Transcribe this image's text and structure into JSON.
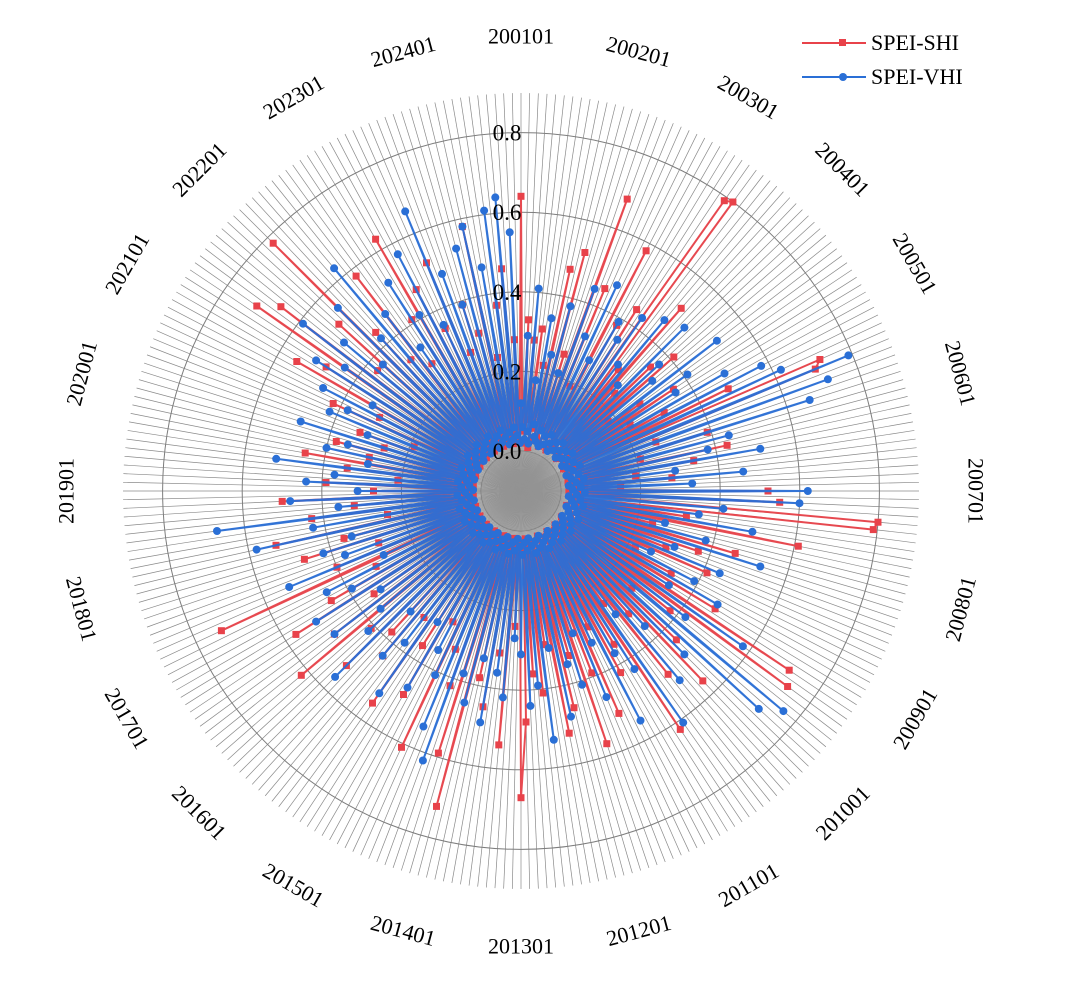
{
  "chart_data": {
    "type": "radar",
    "title": "",
    "legend_position": "top-right",
    "grid": true,
    "rlim": [
      0.0,
      0.8
    ],
    "r_ticks": [
      "0.0",
      "0.2",
      "0.4",
      "0.6",
      "0.8"
    ],
    "r_tick_values": [
      0.0,
      0.2,
      0.4,
      0.6,
      0.8
    ],
    "num_points": 288,
    "category_labels": [
      "200101",
      "200201",
      "200301",
      "200401",
      "200501",
      "200601",
      "200701",
      "200801",
      "200901",
      "201001",
      "201101",
      "201201",
      "201301",
      "201401",
      "201501",
      "201601",
      "201701",
      "201801",
      "201901",
      "202001",
      "202101",
      "202201",
      "202301",
      "202401"
    ],
    "label_every": 12,
    "series": [
      {
        "name": "SPEI-SHI",
        "color": "#E8424A",
        "marker": "square",
        "values": [
          0.64,
          0.05,
          0.33,
          0.02,
          0.28,
          0.08,
          0.31,
          0.01,
          0.22,
          0.06,
          0.47,
          0.03,
          0.52,
          0.04,
          0.26,
          0.07,
          0.68,
          0.02,
          0.45,
          0.05,
          0.19,
          0.03,
          0.58,
          0.06,
          0.38,
          0.02,
          0.44,
          0.05,
          0.79,
          0.8,
          0.04,
          0.29,
          0.07,
          0.51,
          0.03,
          0.24,
          0.06,
          0.35,
          0.02,
          0.41,
          0.05,
          0.18,
          0.08,
          0.27,
          0.03,
          0.36,
          0.06,
          0.22,
          0.04,
          0.31,
          0.02,
          0.48,
          0.05,
          0.72,
          0.7,
          0.06,
          0.26,
          0.03,
          0.39,
          0.05,
          0.21,
          0.07,
          0.43,
          0.02,
          0.34,
          0.05,
          0.19,
          0.03,
          0.28,
          0.06,
          0.15,
          0.04,
          0.52,
          0.02,
          0.55,
          0.05,
          0.8,
          0.79,
          0.03,
          0.32,
          0.06,
          0.61,
          0.04,
          0.24,
          0.07,
          0.46,
          0.02,
          0.37,
          0.05,
          0.29,
          0.03,
          0.41,
          0.06,
          0.22,
          0.04,
          0.33,
          0.05,
          0.47,
          0.02,
          0.71,
          0.05,
          0.73,
          0.03,
          0.38,
          0.06,
          0.27,
          0.04,
          0.44,
          0.02,
          0.56,
          0.05,
          0.31,
          0.03,
          0.49,
          0.06,
          0.25,
          0.04,
          0.62,
          0.02,
          0.35,
          0.05,
          0.42,
          0.03,
          0.28,
          0.06,
          0.51,
          0.04,
          0.39,
          0.02,
          0.57,
          0.05,
          0.33,
          0.07,
          0.46,
          0.03,
          0.52,
          0.06,
          0.29,
          0.04,
          0.41,
          0.02,
          0.36,
          0.05,
          0.48,
          0.67,
          0.03,
          0.24,
          0.06,
          0.54,
          0.04,
          0.31,
          0.02,
          0.45,
          0.05,
          0.38,
          0.03,
          0.72,
          0.06,
          0.59,
          0.04,
          0.42,
          0.02,
          0.33,
          0.05,
          0.61,
          0.03,
          0.27,
          0.06,
          0.49,
          0.04,
          0.36,
          0.02,
          0.55,
          0.05,
          0.3,
          0.03,
          0.44,
          0.06,
          0.38,
          0.04,
          0.52,
          0.02,
          0.41,
          0.05,
          0.62,
          0.03,
          0.49,
          0.06,
          0.35,
          0.04,
          0.57,
          0.02,
          0.45,
          0.05,
          0.31,
          0.03,
          0.73,
          0.06,
          0.4,
          0.04,
          0.28,
          0.02,
          0.47,
          0.05,
          0.36,
          0.03,
          0.53,
          0.06,
          0.24,
          0.04,
          0.43,
          0.02,
          0.32,
          0.05,
          0.5,
          0.03,
          0.27,
          0.06,
          0.39,
          0.04,
          0.21,
          0.02,
          0.34,
          0.05,
          0.45,
          0.03,
          0.29,
          0.06,
          0.38,
          0.04,
          0.26,
          0.02,
          0.33,
          0.05,
          0.19,
          0.03,
          0.42,
          0.06,
          0.3,
          0.04,
          0.55,
          0.02,
          0.48,
          0.05,
          0.71,
          0.03,
          0.66,
          0.06,
          0.37,
          0.04,
          0.52,
          0.02,
          0.78,
          0.05,
          0.44,
          0.03,
          0.33,
          0.06,
          0.58,
          0.04,
          0.29,
          0.02,
          0.41,
          0.05,
          0.63,
          0.03,
          0.47,
          0.06,
          0.35,
          0.04,
          0.52,
          0.02,
          0.27,
          0.05,
          0.39,
          0.03,
          0.31,
          0.06,
          0.58,
          0.04,
          0.24,
          0.02,
          0.37,
          0.05,
          0.46,
          0.03,
          0.28,
          0.06
        ]
      },
      {
        "name": "SPEI-VHI",
        "color": "#2A6FD6",
        "marker": "circle",
        "values": [
          0.12,
          0.06,
          0.29,
          0.03,
          0.41,
          0.05,
          0.18,
          0.02,
          0.34,
          0.07,
          0.25,
          0.04,
          0.38,
          0.03,
          0.21,
          0.06,
          0.44,
          0.02,
          0.32,
          0.05,
          0.47,
          0.03,
          0.27,
          0.06,
          0.39,
          0.04,
          0.35,
          0.02,
          0.43,
          0.05,
          0.3,
          0.03,
          0.46,
          0.06,
          0.26,
          0.04,
          0.48,
          0.02,
          0.37,
          0.05,
          0.33,
          0.03,
          0.52,
          0.06,
          0.41,
          0.04,
          0.36,
          0.02,
          0.49,
          0.05,
          0.58,
          0.03,
          0.62,
          0.06,
          0.79,
          0.04,
          0.72,
          0.02,
          0.66,
          0.05,
          0.44,
          0.03,
          0.38,
          0.06,
          0.51,
          0.04,
          0.29,
          0.02,
          0.46,
          0.05,
          0.33,
          0.03,
          0.62,
          0.06,
          0.6,
          0.04,
          0.41,
          0.02,
          0.35,
          0.05,
          0.49,
          0.03,
          0.27,
          0.06,
          0.38,
          0.04,
          0.53,
          0.02,
          0.31,
          0.05,
          0.44,
          0.03,
          0.26,
          0.06,
          0.39,
          0.04,
          0.47,
          0.02,
          0.34,
          0.05,
          0.58,
          0.03,
          0.42,
          0.06,
          0.76,
          0.04,
          0.71,
          0.02,
          0.48,
          0.05,
          0.36,
          0.03,
          0.52,
          0.06,
          0.29,
          0.04,
          0.61,
          0.02,
          0.43,
          0.05,
          0.37,
          0.03,
          0.55,
          0.06,
          0.32,
          0.04,
          0.46,
          0.02,
          0.28,
          0.05,
          0.41,
          0.03,
          0.35,
          0.06,
          0.48,
          0.04,
          0.3,
          0.02,
          0.53,
          0.05,
          0.39,
          0.03,
          0.44,
          0.06,
          0.31,
          0.04,
          0.27,
          0.02,
          0.42,
          0.05,
          0.36,
          0.03,
          0.49,
          0.06,
          0.33,
          0.04,
          0.45,
          0.02,
          0.38,
          0.05,
          0.62,
          0.03,
          0.54,
          0.06,
          0.41,
          0.04,
          0.35,
          0.02,
          0.47,
          0.05,
          0.29,
          0.03,
          0.52,
          0.06,
          0.38,
          0.04,
          0.44,
          0.02,
          0.31,
          0.05,
          0.56,
          0.03,
          0.42,
          0.06,
          0.36,
          0.04,
          0.49,
          0.02,
          0.33,
          0.05,
          0.51,
          0.03,
          0.39,
          0.06,
          0.45,
          0.04,
          0.28,
          0.02,
          0.53,
          0.05,
          0.37,
          0.03,
          0.42,
          0.06,
          0.34,
          0.04,
          0.58,
          0.02,
          0.43,
          0.05,
          0.67,
          0.03,
          0.36,
          0.06,
          0.48,
          0.04,
          0.31,
          0.02,
          0.44,
          0.05,
          0.37,
          0.03,
          0.52,
          0.06,
          0.29,
          0.04,
          0.4,
          0.02,
          0.35,
          0.05,
          0.48,
          0.03,
          0.31,
          0.06,
          0.42,
          0.04,
          0.38,
          0.02,
          0.46,
          0.05,
          0.33,
          0.03,
          0.51,
          0.06,
          0.44,
          0.04,
          0.59,
          0.02,
          0.48,
          0.05,
          0.37,
          0.03,
          0.55,
          0.06,
          0.42,
          0.04,
          0.63,
          0.02,
          0.46,
          0.05,
          0.34,
          0.03,
          0.52,
          0.06,
          0.41,
          0.04,
          0.57,
          0.02,
          0.36,
          0.05,
          0.66,
          0.03,
          0.48,
          0.06,
          0.39,
          0.04,
          0.53,
          0.02,
          0.58,
          0.05,
          0.47,
          0.03,
          0.61,
          0.06,
          0.64,
          0.04,
          0.55,
          0.02
        ]
      }
    ]
  }
}
